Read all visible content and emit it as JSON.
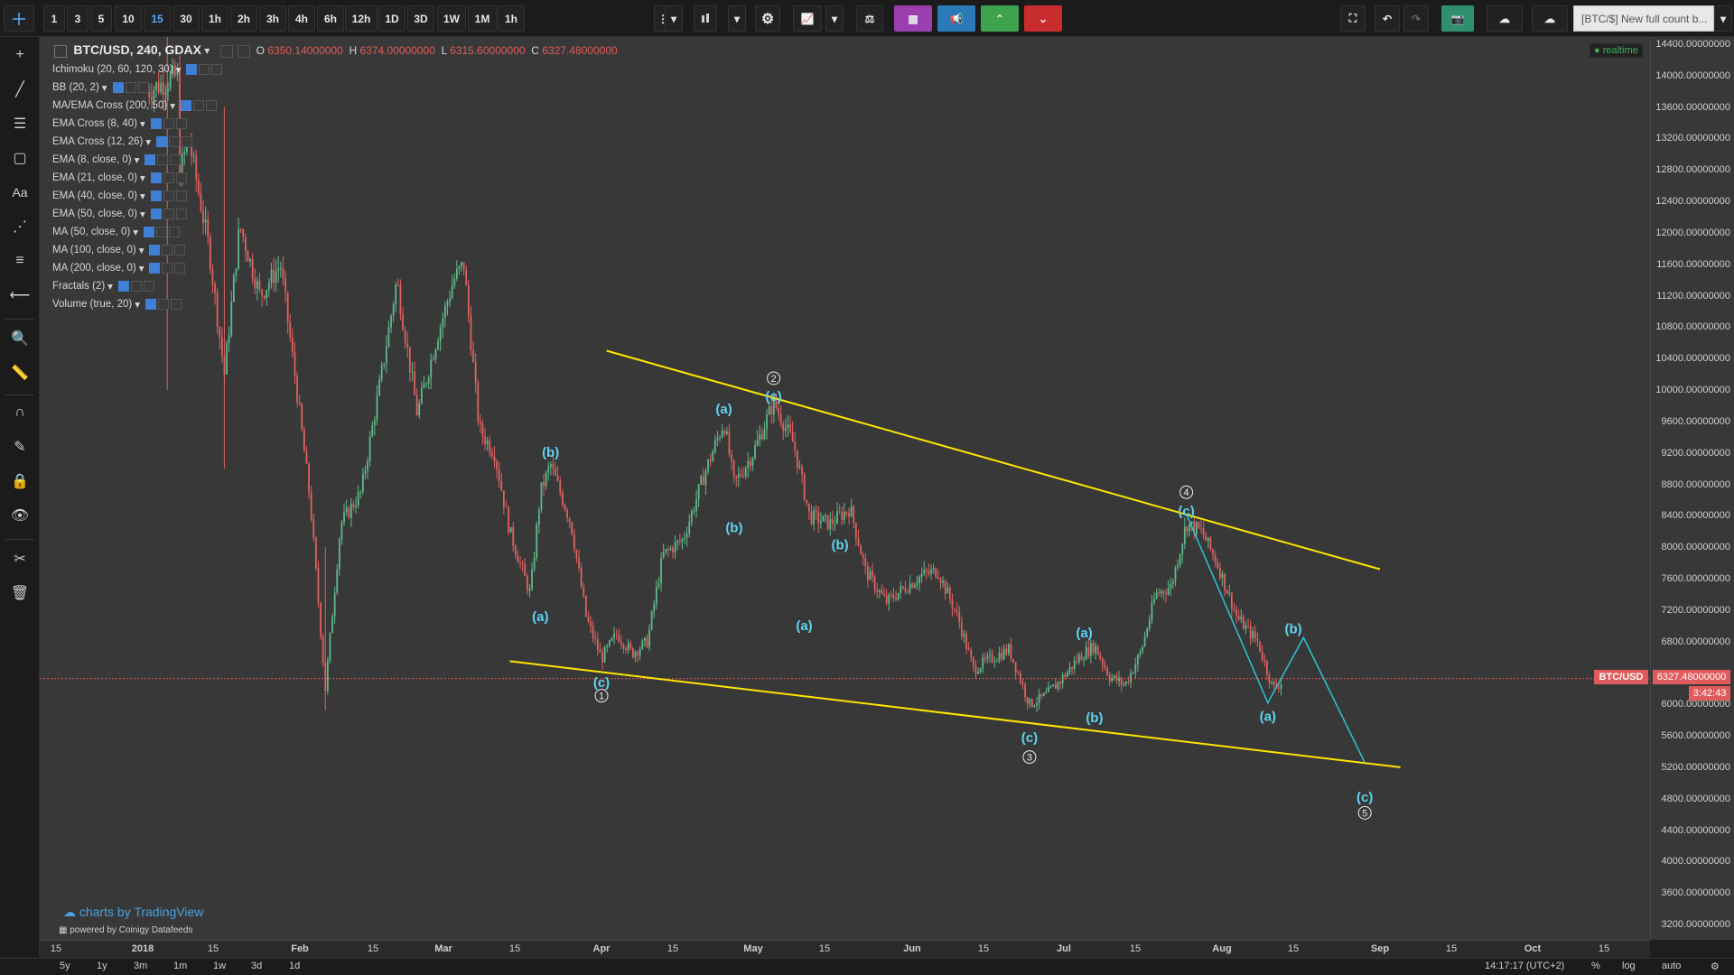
{
  "toolbar": {
    "intervals": [
      "1",
      "3",
      "5",
      "10",
      "15",
      "30",
      "1h",
      "2h",
      "3h",
      "4h",
      "6h",
      "12h",
      "1D",
      "3D",
      "1W",
      "1M",
      "1h"
    ],
    "active_interval_index": 4,
    "idea_text": "[BTC/$] New full count b..."
  },
  "legend": {
    "symbol": "BTC/USD, 240, GDAX",
    "o_label": "O",
    "o_value": "6350.14000000",
    "h_label": "H",
    "h_value": "6374.00000000",
    "l_label": "L",
    "l_value": "6315.60000000",
    "c_label": "C",
    "c_value": "6327.48000000",
    "indicators": [
      "Ichimoku (20, 60, 120, 30)",
      "BB (20, 2)",
      "MA/EMA Cross (200, 50)",
      "EMA Cross (8, 40)",
      "EMA Cross (12, 26)",
      "EMA (8, close, 0)",
      "EMA (21, close, 0)",
      "EMA (40, close, 0)",
      "EMA (50, close, 0)",
      "MA (50, close, 0)",
      "MA (100, close, 0)",
      "MA (200, close, 0)",
      "Fractals (2)",
      "Volume (true, 20)"
    ],
    "realtime": "● realtime"
  },
  "watermark": {
    "tradingview": "charts by TradingView",
    "coinigy": "powered by Coinigy Datafeeds"
  },
  "price_axis": {
    "labels": [
      "14400.00000000",
      "14000.00000000",
      "13600.00000000",
      "13200.00000000",
      "12800.00000000",
      "12400.00000000",
      "12000.00000000",
      "11600.00000000",
      "11200.00000000",
      "10800.00000000",
      "10400.00000000",
      "10000.00000000",
      "9600.00000000",
      "9200.00000000",
      "8800.00000000",
      "8400.00000000",
      "8000.00000000",
      "7600.00000000",
      "7200.00000000",
      "6800.00000000",
      "6000.00000000",
      "5600.00000000",
      "5200.00000000",
      "4800.00000000",
      "4400.00000000",
      "4000.00000000",
      "3600.00000000",
      "3200.00000000"
    ],
    "symbol_tag": "BTC/USD",
    "current_price": "6327.48000000",
    "countdown": "3:42:43"
  },
  "time_axis": {
    "labels": [
      "15",
      "2018",
      "15",
      "Feb",
      "15",
      "Mar",
      "15",
      "Apr",
      "15",
      "May",
      "15",
      "Jun",
      "15",
      "Jul",
      "15",
      "Aug",
      "15",
      "Sep",
      "15",
      "Oct",
      "15"
    ]
  },
  "bottom_bar": {
    "ranges": [
      "5y",
      "1y",
      "3m",
      "1m",
      "1w",
      "3d",
      "1d"
    ],
    "clock": "14:17:17 (UTC+2)",
    "pct": "%",
    "log": "log",
    "auto": "auto"
  },
  "chart_data": {
    "type": "candlestick",
    "price_range": [
      3200,
      14400
    ],
    "current_price": 6327.48,
    "wave_labels": [
      {
        "text": "(a)",
        "price": 7120,
        "date": "Mar 20"
      },
      {
        "text": "(b)",
        "price": 9210,
        "date": "Mar 22"
      },
      {
        "text": "(c)",
        "price": 6280,
        "date": "Apr 1"
      },
      {
        "text": "1",
        "price": 6110,
        "date": "Apr 1"
      },
      {
        "text": "(a)",
        "price": 9760,
        "date": "Apr 25"
      },
      {
        "text": "(b)",
        "price": 8250,
        "date": "Apr 27"
      },
      {
        "text": "(c)",
        "price": 9920,
        "date": "May 5"
      },
      {
        "text": "2",
        "price": 10150,
        "date": "May 5"
      },
      {
        "text": "(b)",
        "price": 8030,
        "date": "May 18"
      },
      {
        "text": "(a)",
        "price": 7000,
        "date": "May 11"
      },
      {
        "text": "(c)",
        "price": 5580,
        "date": "Jun 24"
      },
      {
        "text": "3",
        "price": 5330,
        "date": "Jun 24"
      },
      {
        "text": "(a)",
        "price": 6910,
        "date": "Jul 5"
      },
      {
        "text": "(b)",
        "price": 5830,
        "date": "Jul 7"
      },
      {
        "text": "(c)",
        "price": 8460,
        "date": "Jul 25"
      },
      {
        "text": "4",
        "price": 8700,
        "date": "Jul 25"
      },
      {
        "text": "(b)",
        "price": 6960,
        "date": "Aug 15"
      },
      {
        "text": "(a)",
        "price": 5850,
        "date": "Aug 10"
      },
      {
        "text": "(c)",
        "price": 4820,
        "date": "Aug 29"
      },
      {
        "text": "5",
        "price": 4620,
        "date": "Aug 29"
      }
    ],
    "colors": {
      "trendline": "#ffe600",
      "projection": "#2ec4d6",
      "wave": "#5fd3f0",
      "up": "#5fb98a",
      "down": "#e0615f"
    }
  }
}
